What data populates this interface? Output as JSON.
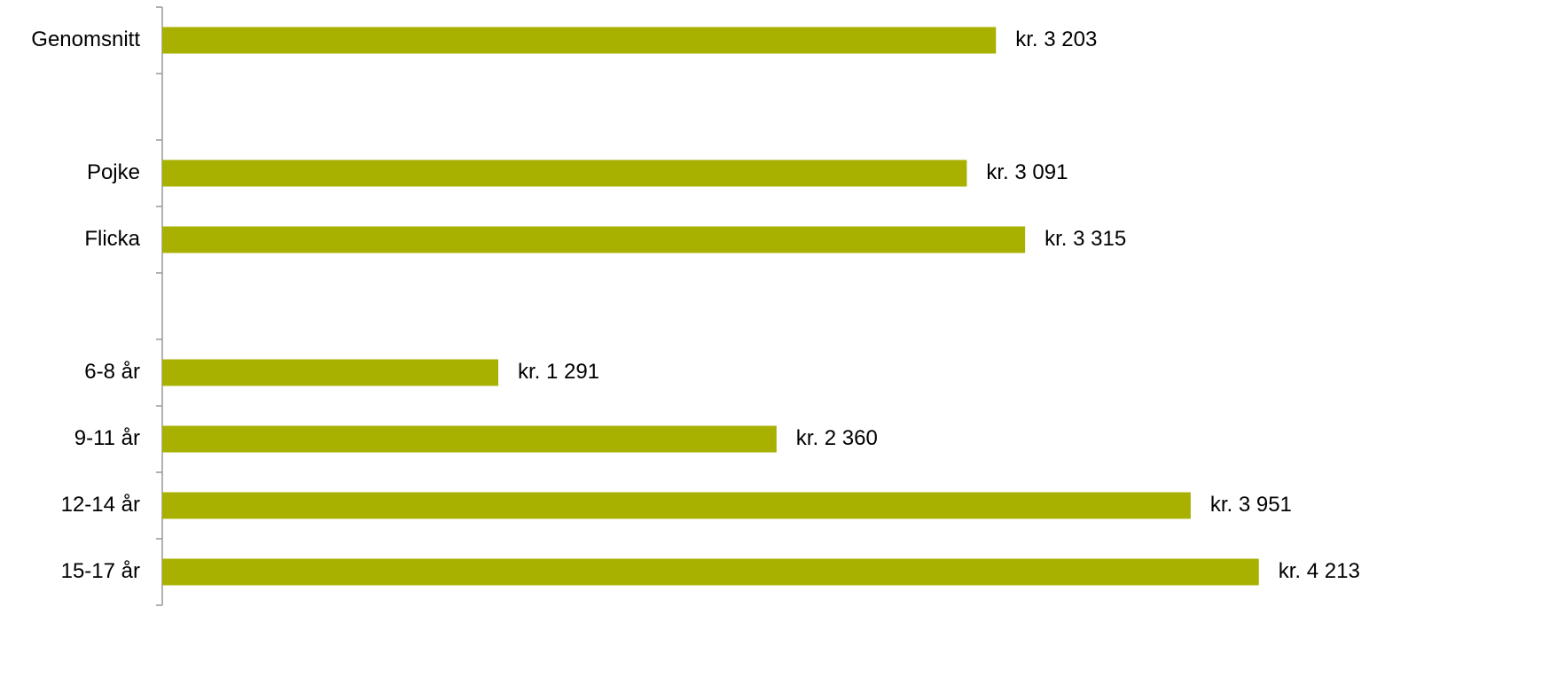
{
  "chart_data": {
    "type": "barh",
    "categories": [
      "Genomsnitt",
      null,
      "Pojke",
      "Flicka",
      null,
      "6-8 år",
      "9-11 år",
      "12-14 år",
      "15-17 år"
    ],
    "values": [
      3203,
      null,
      3091,
      3315,
      null,
      1291,
      2360,
      3951,
      4213
    ],
    "value_labels": [
      "kr. 3 203",
      null,
      "kr. 3 091",
      "kr. 3 315",
      null,
      "kr. 1 291",
      "kr. 2 360",
      "kr. 3 951",
      "kr. 4 213"
    ],
    "color": "#a8b000",
    "xlim": [
      0,
      4500
    ]
  }
}
